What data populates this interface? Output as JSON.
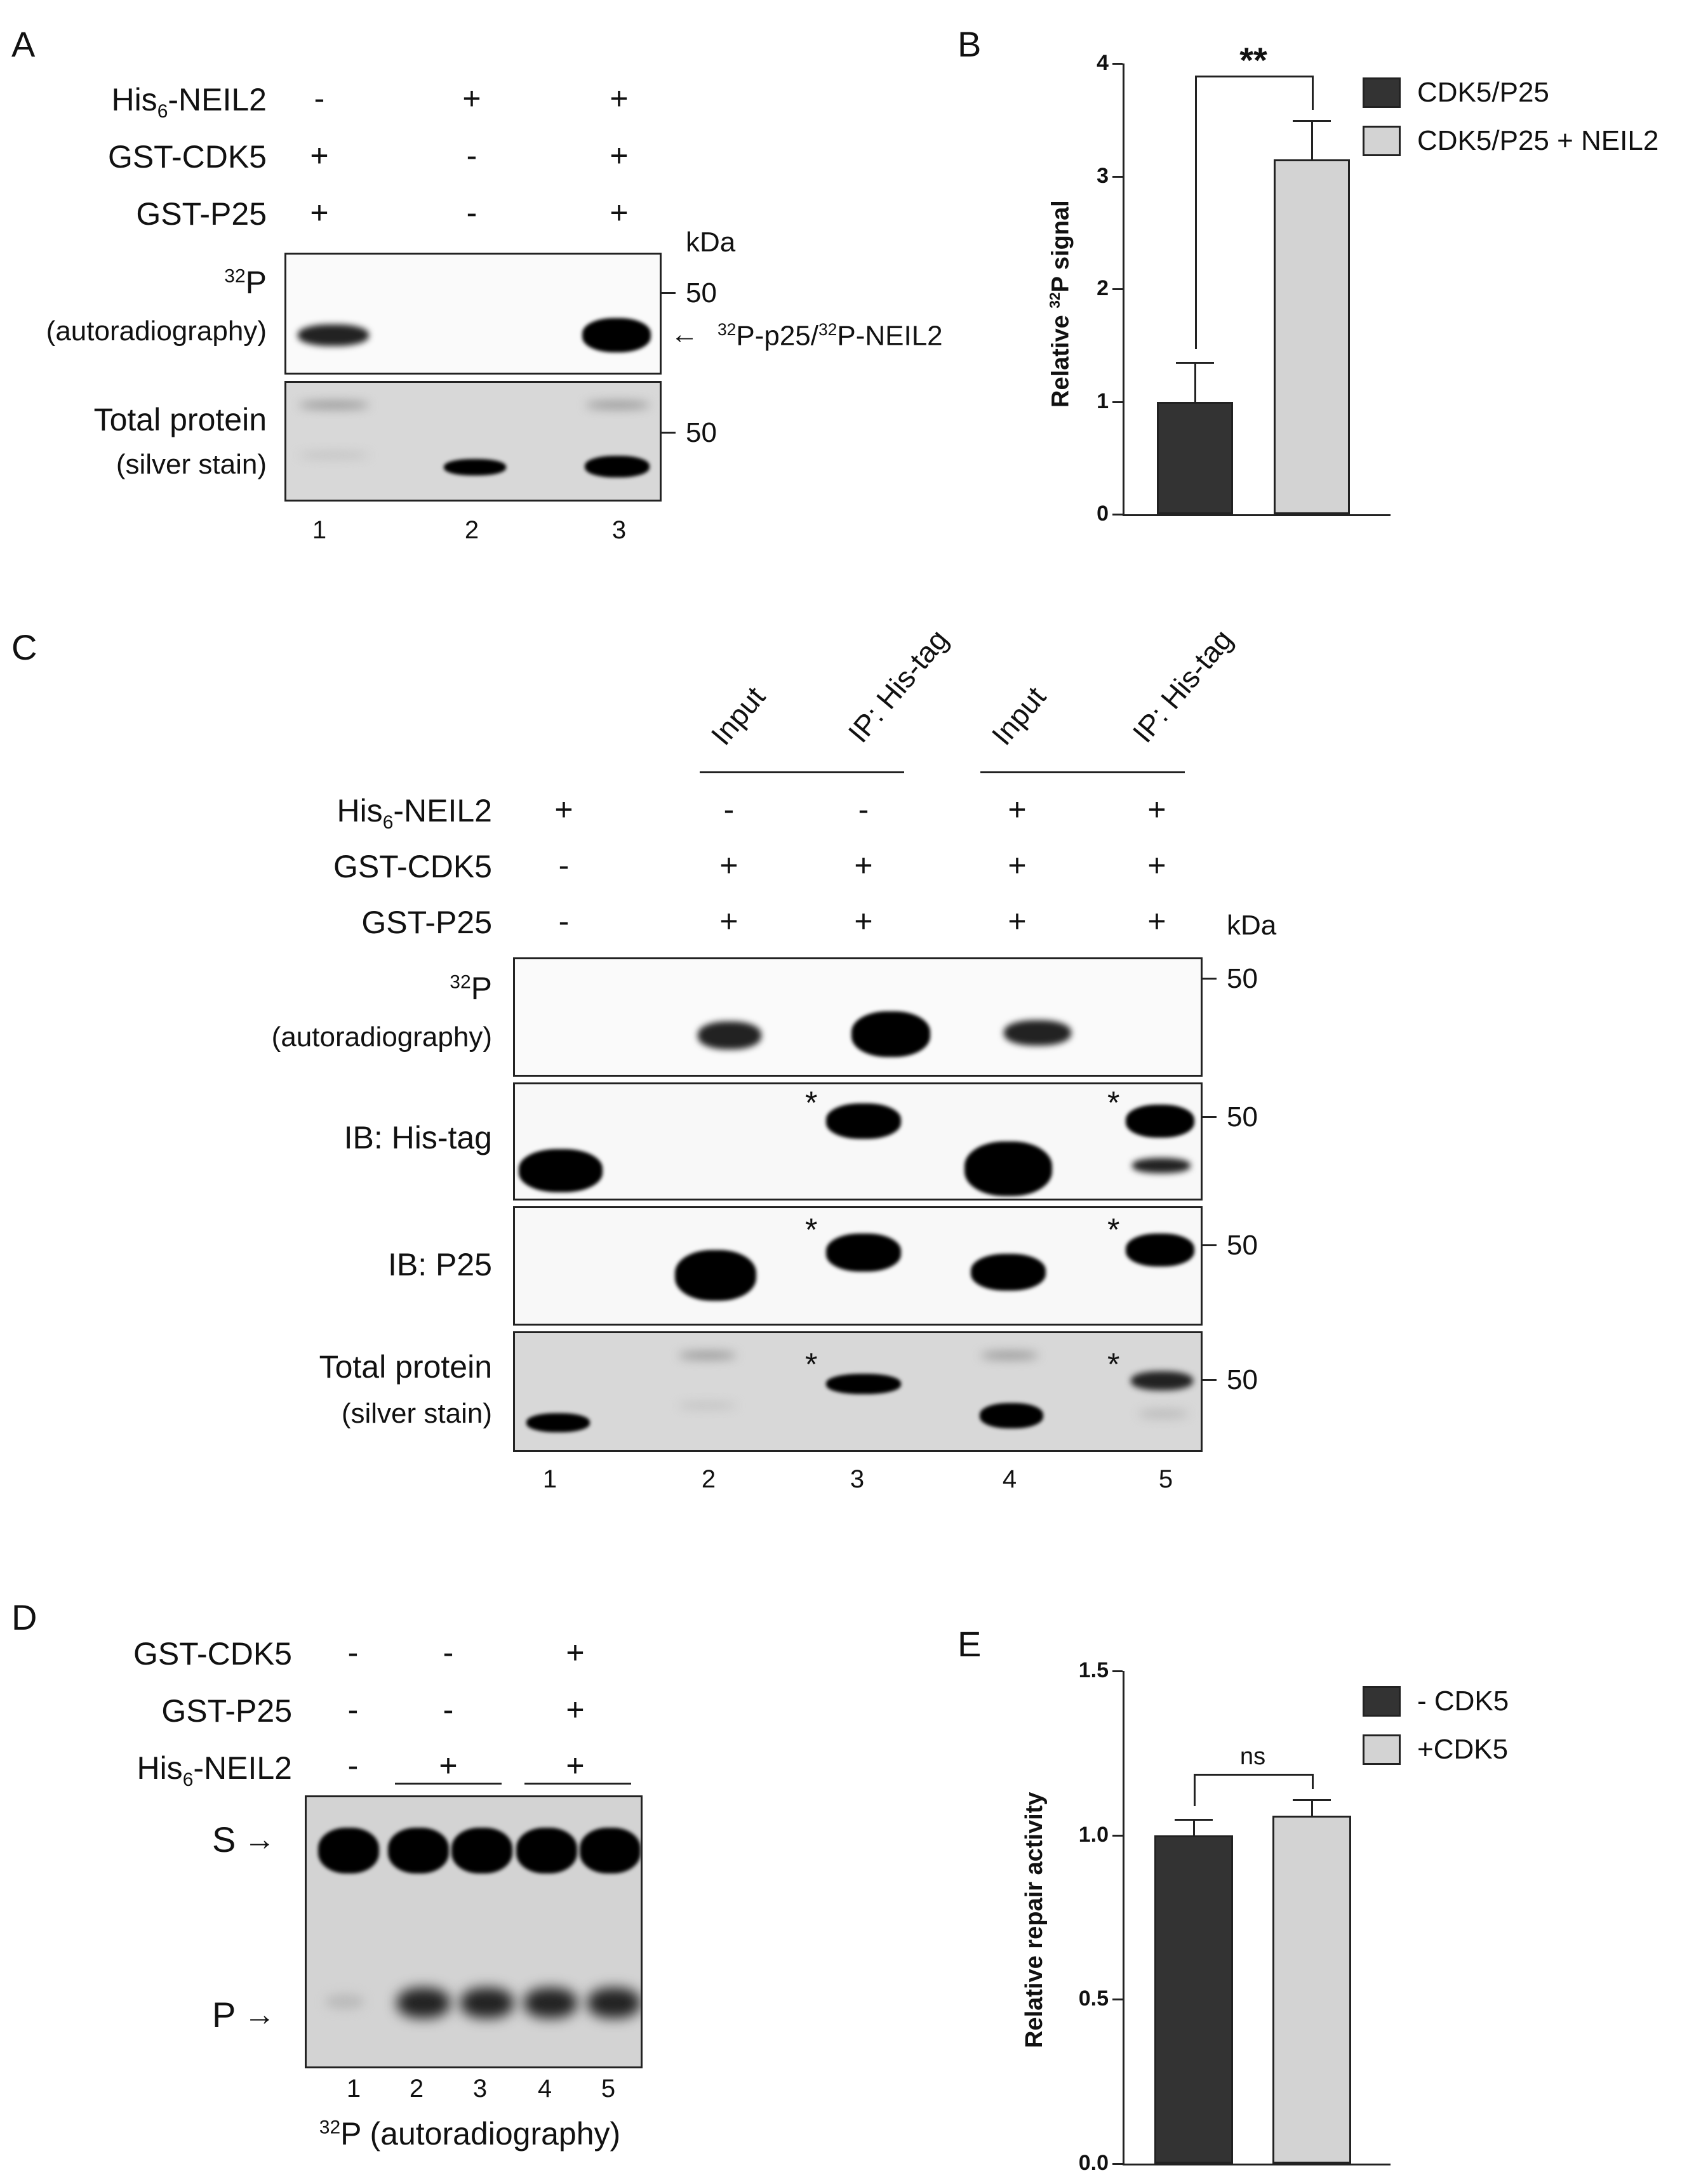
{
  "panels": {
    "A": "A",
    "B": "B",
    "C": "C",
    "D": "D",
    "E": "E"
  },
  "panelA": {
    "rows": [
      "His",
      "GST-CDK5",
      "GST-P25"
    ],
    "row1_suffix": "-NEIL2",
    "row1_sub": "6",
    "signs": [
      [
        "-",
        "+",
        "+"
      ],
      [
        "+",
        "-",
        "+"
      ],
      [
        "+",
        "-",
        "+"
      ]
    ],
    "kda": "kDa",
    "mw": [
      "50",
      "50"
    ],
    "p32_sup": "32",
    "p32_main": "P",
    "autorad": "(autoradiography)",
    "total_protein": "Total protein",
    "silver": "(silver stain)",
    "arrow_label": "←",
    "band_label_sup1": "32",
    "band_label_1": "P-p25/",
    "band_label_sup2": "32",
    "band_label_2": "P-NEIL2",
    "lanes": [
      "1",
      "2",
      "3"
    ]
  },
  "panelC": {
    "col_labels": [
      "Input",
      "IP: His-tag",
      "Input",
      "IP: His-tag"
    ],
    "rows": [
      "His",
      "GST-CDK5",
      "GST-P25"
    ],
    "row1_suffix": "-NEIL2",
    "row1_sub": "6",
    "signs": [
      [
        "+",
        "-",
        "-",
        "+",
        "+"
      ],
      [
        "-",
        "+",
        "+",
        "+",
        "+"
      ],
      [
        "-",
        "+",
        "+",
        "+",
        "+"
      ]
    ],
    "kda": "kDa",
    "mw": [
      "50",
      "50",
      "50",
      "50"
    ],
    "p32_sup": "32",
    "p32_main": "P",
    "autorad": "(autoradiography)",
    "ib_his": "IB: His-tag",
    "ib_p25": "IB: P25",
    "total_protein": "Total protein",
    "silver": "(silver stain)",
    "star": "*",
    "lanes": [
      "1",
      "2",
      "3",
      "4",
      "5"
    ]
  },
  "panelD": {
    "rows": [
      "GST-CDK5",
      "GST-P25",
      "His"
    ],
    "row3_suffix": "-NEIL2",
    "row3_sub": "6",
    "signs": [
      [
        "-",
        "-",
        "+"
      ],
      [
        "-",
        "-",
        "+"
      ],
      [
        "-",
        "+",
        "+"
      ]
    ],
    "s_label": "S",
    "p_label": "P",
    "arrow": "→",
    "lanes": [
      "1",
      "2",
      "3",
      "4",
      "5"
    ],
    "footer_sup": "32",
    "footer": "P (autoradiography)"
  },
  "chart_data": [
    {
      "type": "bar",
      "panel": "B",
      "categories": [
        "CDK5/P25",
        "CDK5/P25 + NEIL2"
      ],
      "values": [
        1.0,
        3.15
      ],
      "errors": [
        0.35,
        0.35
      ],
      "colors": [
        "#333333",
        "#d3d3d3"
      ],
      "ylim": [
        0,
        4
      ],
      "yticks": [
        "0",
        "1",
        "2",
        "3",
        "4"
      ],
      "ylabel_pre": "Relative ",
      "ylabel_sup": "32",
      "ylabel_post": "P signal",
      "significance": "**",
      "legend": [
        "CDK5/P25",
        "CDK5/P25 + NEIL2"
      ],
      "legend_position": "top-right"
    },
    {
      "type": "bar",
      "panel": "E",
      "categories": [
        "- CDK5",
        "+CDK5"
      ],
      "values": [
        1.0,
        1.06
      ],
      "errors": [
        0.05,
        0.05
      ],
      "colors": [
        "#333333",
        "#d3d3d3"
      ],
      "ylim": [
        0,
        1.5
      ],
      "yticks": [
        "0.0",
        "0.5",
        "1.0",
        "1.5"
      ],
      "ylabel": "Relative repair activity",
      "significance": "ns",
      "legend": [
        "- CDK5",
        "+CDK5"
      ],
      "legend_position": "top-right"
    }
  ]
}
